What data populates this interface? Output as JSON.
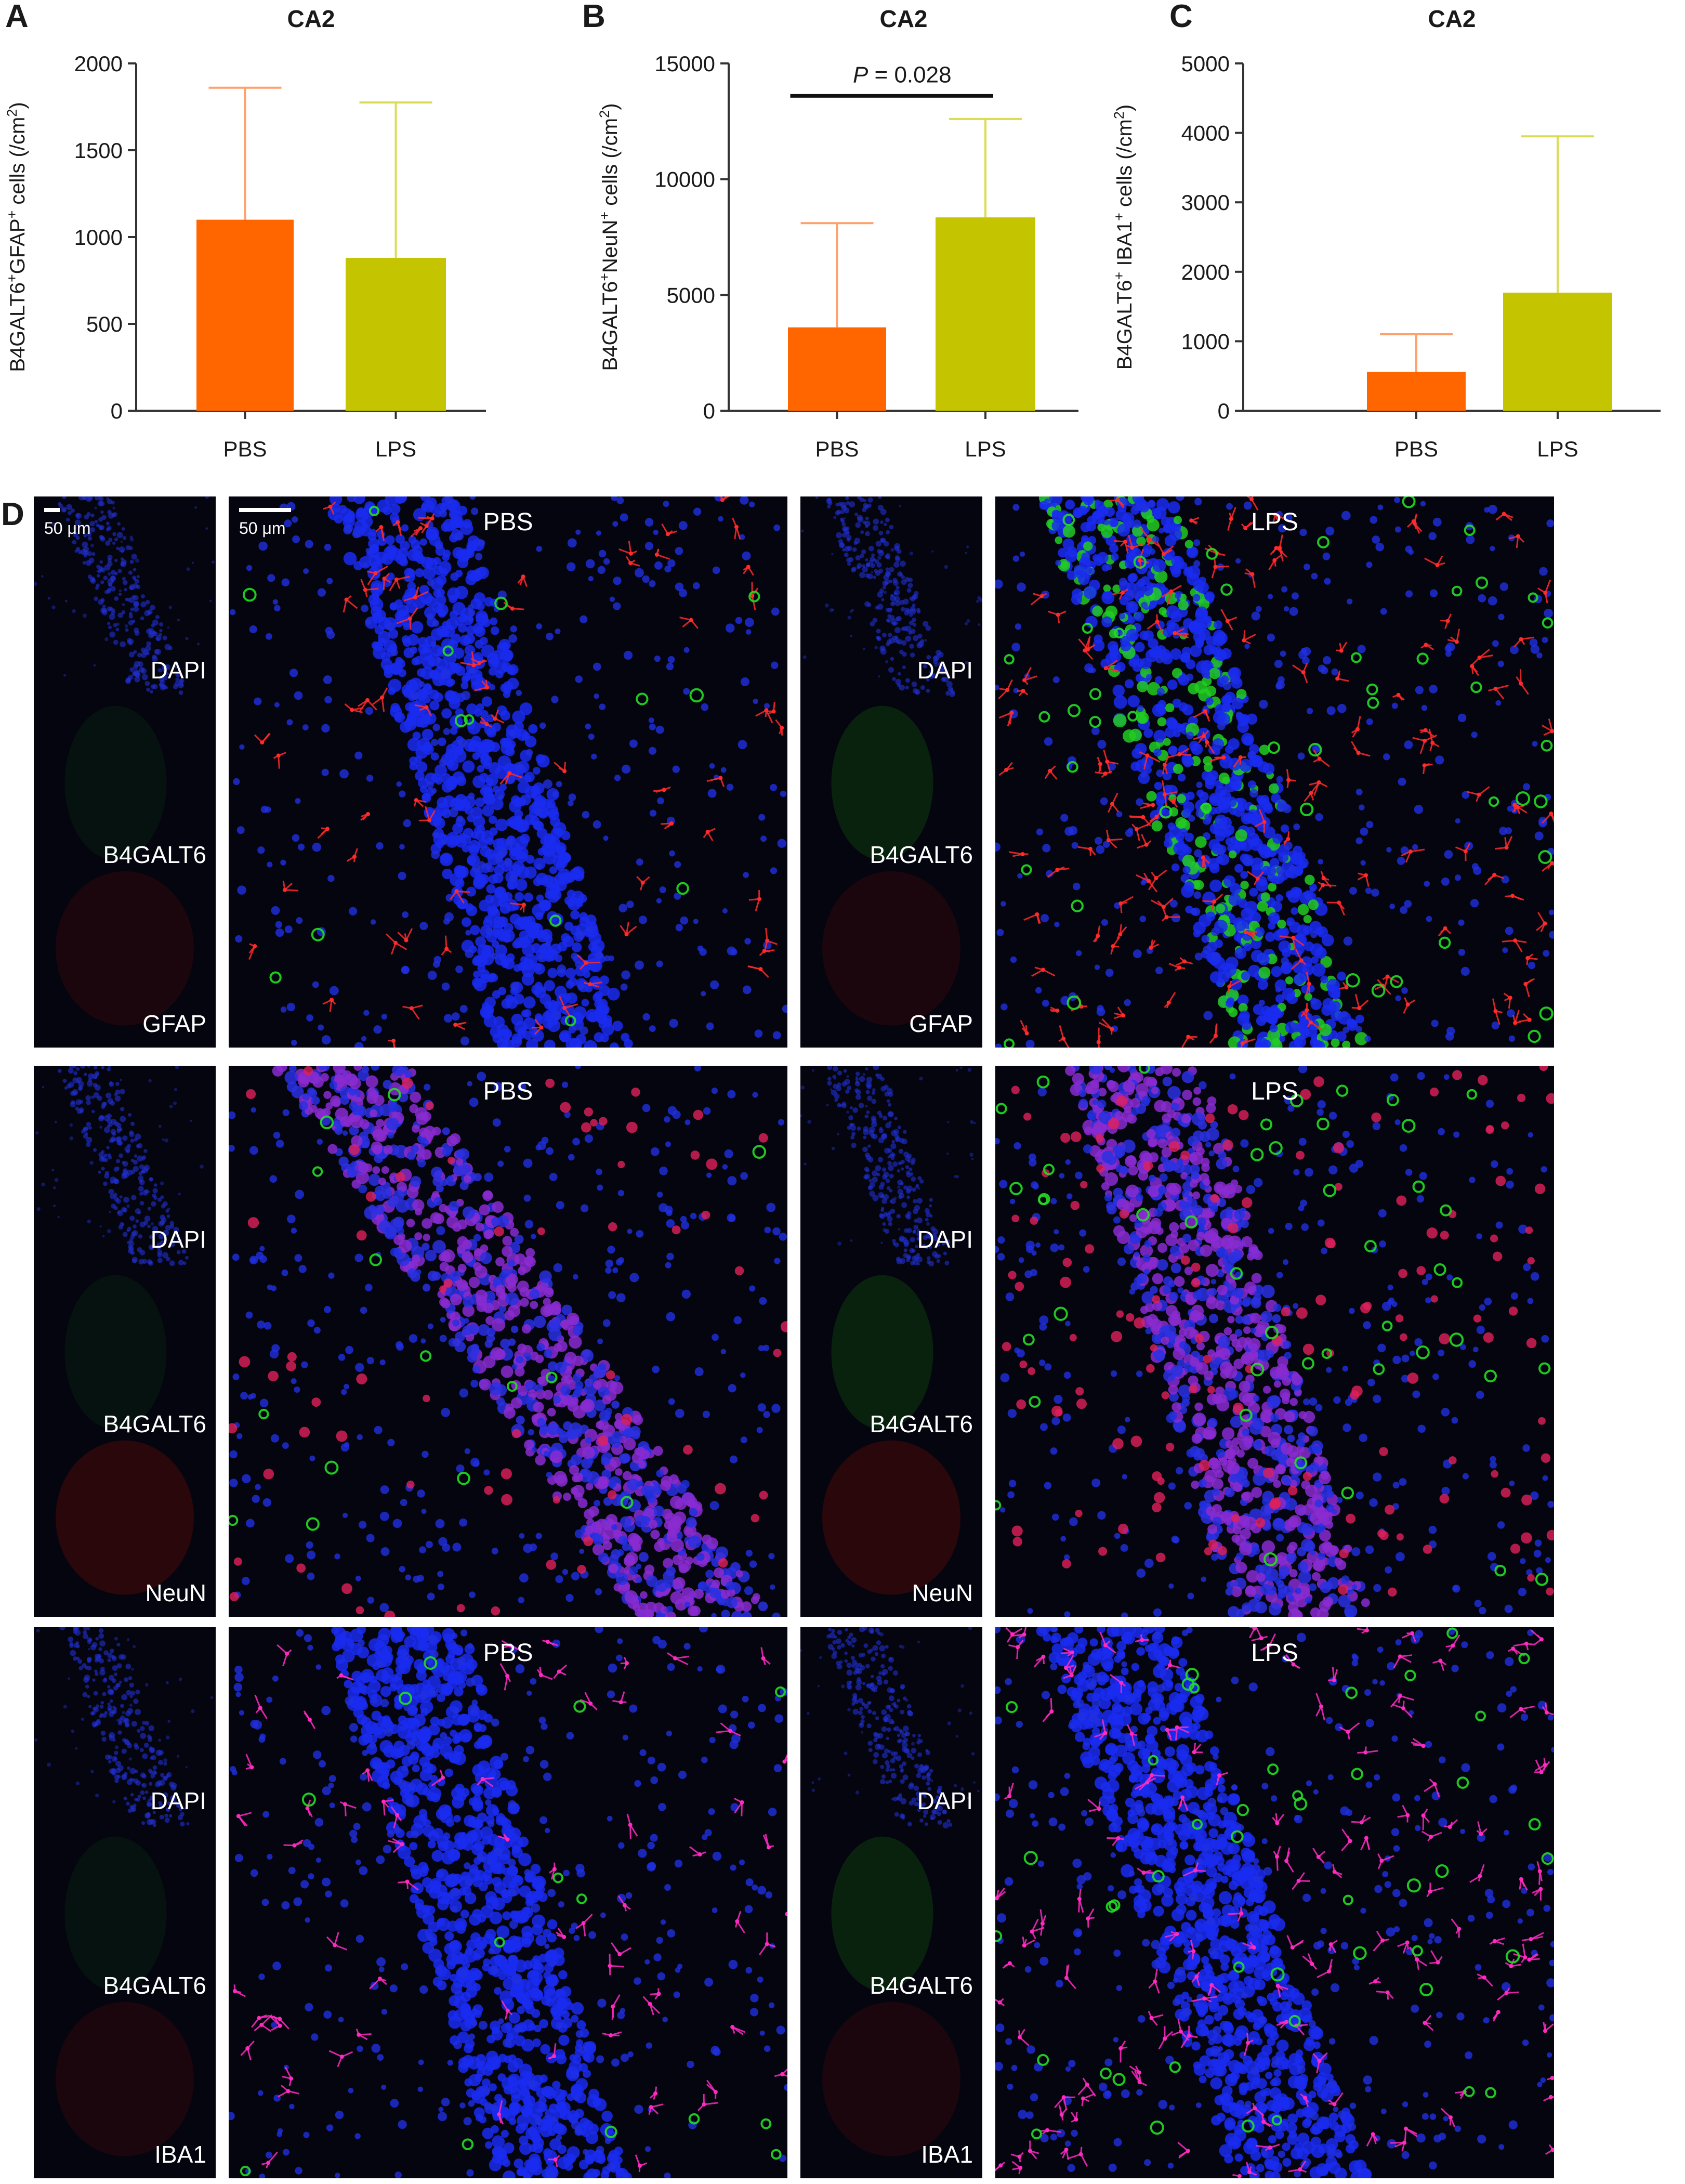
{
  "colors": {
    "pbs": "#FF6600",
    "lps": "#C4C400",
    "pbs_err": "#FFA16B",
    "lps_err": "#DCDC52",
    "axis": "#333333",
    "text": "#1a1a1a",
    "micro_bg": "#050510",
    "label_white": "#ffffff"
  },
  "chart_data": [
    {
      "panel": "A",
      "type": "bar",
      "title": "CA2",
      "ylabel": "B4GALT6+GFAP+ cells (/cm2)",
      "ylabel_parts": {
        "pre": "B4GALT6",
        "sup1": "+",
        "mid": "GFAP",
        "sup2": "+",
        "post": " cells (/cm",
        "sup3": "2",
        "end": ")"
      },
      "categories": [
        "PBS",
        "LPS"
      ],
      "values": [
        1100,
        880
      ],
      "error_upper": [
        1860,
        1775
      ],
      "ylim": [
        0,
        2000
      ],
      "yticks": [
        0,
        500,
        1000,
        1500,
        2000
      ],
      "ytick_labels": [
        "0",
        "500",
        "1000",
        "1500",
        "2000"
      ],
      "significance": null
    },
    {
      "panel": "B",
      "type": "bar",
      "title": "CA2",
      "ylabel": "B4GALT6+NeuN+ cells (/cm2)",
      "ylabel_parts": {
        "pre": "B4GALT6",
        "sup1": "+",
        "mid": "NeuN",
        "sup2": "+",
        "post": " cells (/cm",
        "sup3": "2",
        "end": ")"
      },
      "categories": [
        "PBS",
        "LPS"
      ],
      "values": [
        3600,
        8350
      ],
      "error_upper": [
        8100,
        12600
      ],
      "ylim": [
        0,
        15000
      ],
      "yticks": [
        0,
        5000,
        10000,
        15000
      ],
      "ytick_labels": [
        "0",
        "5000",
        "10000",
        "15000"
      ],
      "significance": {
        "label_p": "P",
        "label_rest": " = 0.028",
        "y": 13600
      }
    },
    {
      "panel": "C",
      "type": "bar",
      "title": "CA2",
      "ylabel": "B4GALT6+ IBA1+ cells (/cm2)",
      "ylabel_parts": {
        "pre": "B4GALT6",
        "sup1": "+",
        "mid": " IBA1",
        "sup2": "+",
        "post": " cells (/cm",
        "sup3": "2",
        "end": ")"
      },
      "categories": [
        "PBS",
        "LPS"
      ],
      "values": [
        560,
        1700
      ],
      "error_upper": [
        1100,
        3950
      ],
      "ylim": [
        0,
        5000
      ],
      "yticks": [
        0,
        1000,
        2000,
        3000,
        4000,
        5000
      ],
      "ytick_labels": [
        "0",
        "1000",
        "2000",
        "3000",
        "4000",
        "5000"
      ],
      "significance": null
    }
  ],
  "panel_d": {
    "letter": "D",
    "scale_bar_label": "50 μm",
    "channel_labels": [
      "DAPI",
      "B4GALT6"
    ],
    "rows": [
      {
        "marker": "GFAP",
        "pbs_label": "PBS",
        "lps_label": "LPS",
        "marker_color": "#ff2a2a"
      },
      {
        "marker": "NeuN",
        "pbs_label": "PBS",
        "lps_label": "LPS",
        "marker_color": "#ff2a6a"
      },
      {
        "marker": "IBA1",
        "pbs_label": "PBS",
        "lps_label": "LPS",
        "marker_color": "#ff2ac0"
      }
    ]
  }
}
